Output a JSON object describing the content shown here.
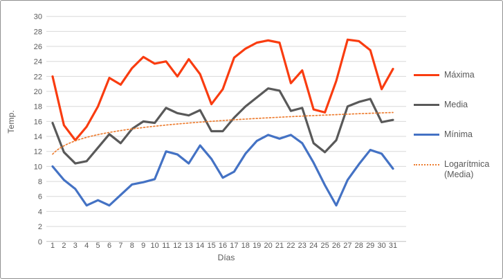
{
  "axes": {
    "y_title": "Temp.",
    "x_title": "Días"
  },
  "legend": {
    "position": "right",
    "items": [
      {
        "label": "Máxima",
        "color": "#f93c10",
        "style": "solid"
      },
      {
        "label": "Media",
        "color": "#595959",
        "style": "solid"
      },
      {
        "label": "Mínima",
        "color": "#4472c4",
        "style": "solid"
      },
      {
        "label": "Logarítmica",
        "label2": "(Media)",
        "color": "#ed7d31",
        "style": "dotted"
      }
    ]
  },
  "colors": {
    "gridline": "#d9d9d9",
    "axis_line": "#bfbfbf",
    "tick_text": "#595959",
    "frame_border": "#8f8f8f"
  },
  "chart_data": {
    "type": "line",
    "title": "",
    "xlabel": "Días",
    "ylabel": "Temp.",
    "legend_position": "right",
    "grid": true,
    "ylim": [
      0,
      30
    ],
    "ytick_step": 2,
    "x": [
      1,
      2,
      3,
      4,
      5,
      6,
      7,
      8,
      9,
      10,
      11,
      12,
      13,
      14,
      15,
      16,
      17,
      18,
      19,
      20,
      21,
      22,
      23,
      24,
      25,
      26,
      27,
      28,
      29,
      30,
      31
    ],
    "series": [
      {
        "name": "Máxima",
        "color": "#f93c10",
        "style": "solid",
        "values": [
          22,
          15.5,
          13.5,
          15.3,
          18,
          21.8,
          20.9,
          23.1,
          24.6,
          23.7,
          24,
          22,
          24.3,
          22.3,
          18.3,
          20.3,
          24.5,
          25.7,
          26.5,
          26.8,
          26.5,
          21.1,
          22.8,
          17.6,
          17.2,
          21.4,
          26.9,
          26.7,
          25.5,
          20.3,
          23
        ]
      },
      {
        "name": "Media",
        "color": "#595959",
        "style": "solid",
        "values": [
          15.8,
          11.9,
          10.4,
          10.7,
          12.5,
          14.3,
          13.1,
          15,
          16,
          15.8,
          17.8,
          17.1,
          16.8,
          17.5,
          14.7,
          14.7,
          16.5,
          18,
          19.2,
          20.4,
          20.1,
          17.4,
          17.8,
          13.1,
          11.9,
          13.5,
          18,
          18.6,
          19,
          15.9,
          16.2
        ]
      },
      {
        "name": "Mínima",
        "color": "#4472c4",
        "style": "solid",
        "values": [
          10,
          8.2,
          7,
          4.8,
          5.5,
          4.8,
          6.2,
          7.6,
          7.9,
          8.3,
          12,
          11.6,
          10.4,
          12.8,
          11,
          8.5,
          9.3,
          11.7,
          13.4,
          14.2,
          13.7,
          14.2,
          13.1,
          10.5,
          7.5,
          4.8,
          8.2,
          10.3,
          12.2,
          11.7,
          9.7
        ]
      }
    ],
    "trendline": {
      "name": "Logarítmica (Media)",
      "of_series": "Media",
      "color": "#ed7d31",
      "style": "dotted",
      "formula": "y = 1.62*ln(x) + 11.63",
      "a": 1.62,
      "b": 11.63,
      "x_range": [
        1,
        31
      ]
    }
  }
}
